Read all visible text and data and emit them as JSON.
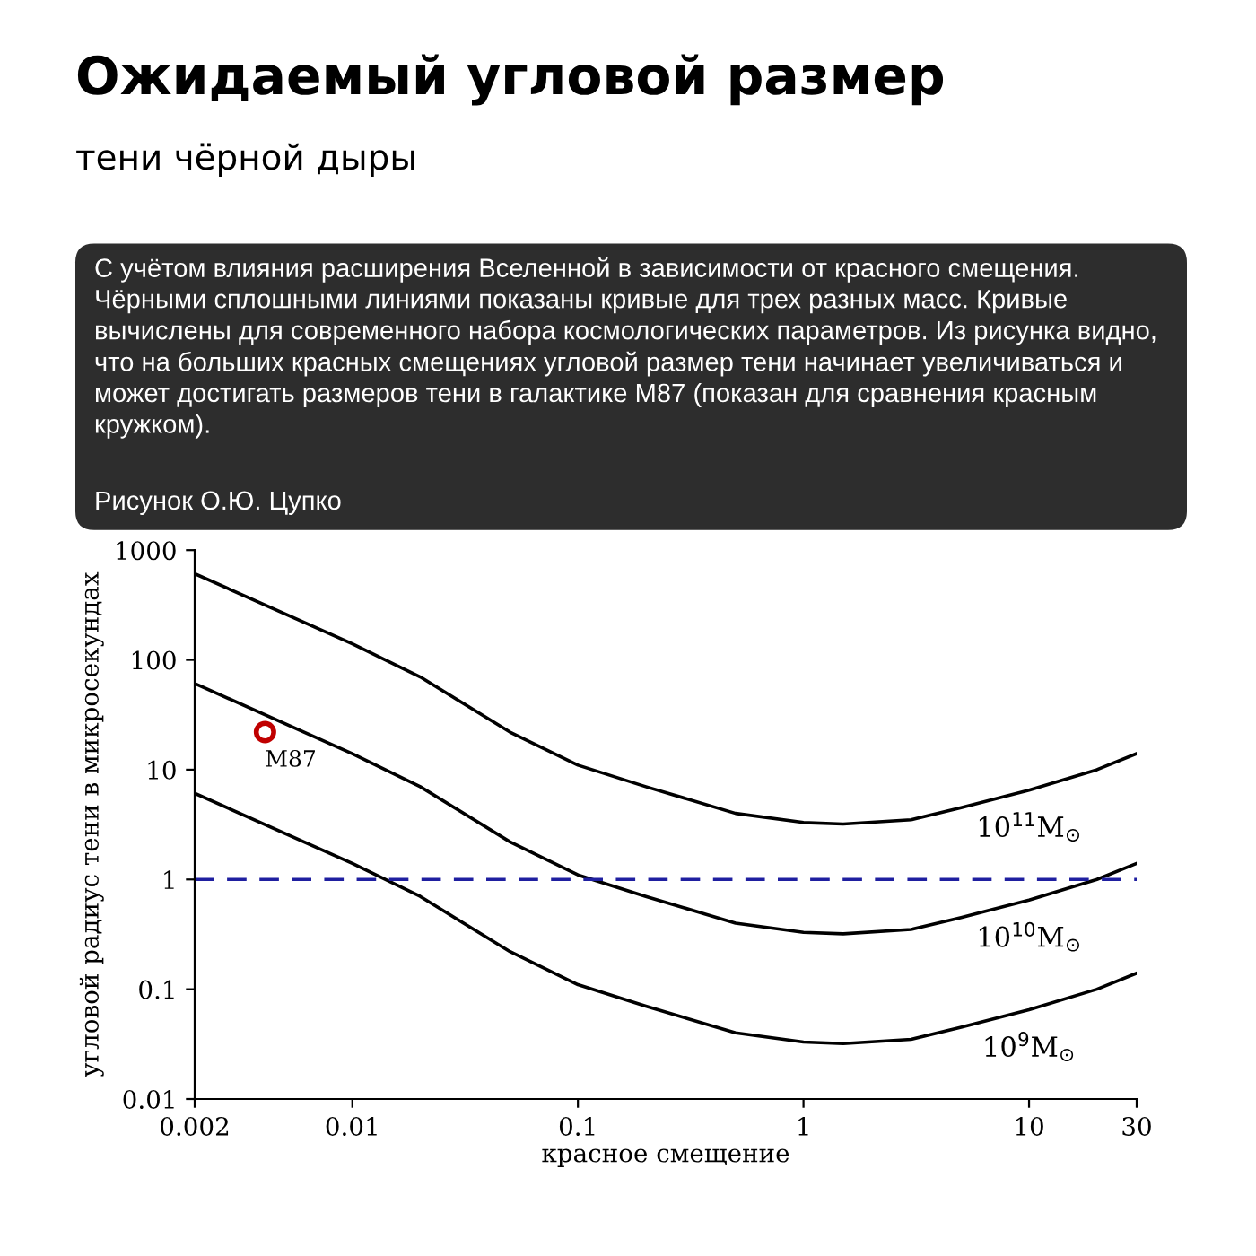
{
  "chart_data": {
    "type": "line",
    "title": "Ожидаемый угловой размер",
    "subtitle": "тени чёрной дыры",
    "annotations": [
      "С учётом влияния расширения Вселенной в зависимости от красного смещения. Чёрными сплошными линиями показаны кривые для трех разных масс. Кривые вычислены для современного набора космологических параметров. Из рисунка видно, что на больших красных смещениях угловой размер тени начинает увеличиваться и может достигать размеров тени в галактике M87 (показан для сравнения красным кружком).",
      "Рисунок О.Ю. Цупко",
      {
        "text": "M87",
        "x": 0.0041,
        "y": 22
      }
    ],
    "xlabel": "красное смещение",
    "ylabel": "угловой радиус тени в микросекундах",
    "log": "xy",
    "xlim": [
      0.002,
      30
    ],
    "ylim": [
      0.01,
      1000
    ],
    "xticks": [
      0.002,
      0.01,
      0.1,
      1,
      10,
      30
    ],
    "yticks": [
      0.01,
      0.1,
      1,
      10,
      100,
      1000
    ],
    "grid": false,
    "legend": false,
    "ref_lines": [
      {
        "axis": "y",
        "value": 1,
        "color": "#1f1fa0",
        "line_style": "dashed"
      }
    ],
    "series": [
      {
        "name": "10$^{11}$M$_{⊙}$",
        "color": "#000000",
        "x": [
          0.002,
          0.01,
          0.02,
          0.05,
          0.1,
          0.2,
          0.5,
          1,
          1.5,
          3,
          5,
          10,
          20,
          30
        ],
        "values": [
          610,
          140,
          70,
          22,
          11,
          7,
          4,
          3.3,
          3.2,
          3.5,
          4.5,
          6.5,
          10,
          14
        ]
      },
      {
        "name": "10$^{10}$M$_{⊙}$",
        "color": "#000000",
        "x": [
          0.002,
          0.01,
          0.02,
          0.05,
          0.1,
          0.2,
          0.5,
          1,
          1.5,
          3,
          5,
          10,
          20,
          30
        ],
        "values": [
          61,
          14,
          7,
          2.2,
          1.1,
          0.7,
          0.4,
          0.33,
          0.32,
          0.35,
          0.45,
          0.65,
          1,
          1.4
        ]
      },
      {
        "name": "10$^{9}$M$_{⊙}$",
        "color": "#000000",
        "x": [
          0.002,
          0.01,
          0.02,
          0.05,
          0.1,
          0.2,
          0.5,
          1,
          1.5,
          3,
          5,
          10,
          20,
          30
        ],
        "values": [
          6.1,
          1.4,
          0.7,
          0.22,
          0.11,
          0.07,
          0.04,
          0.033,
          0.032,
          0.035,
          0.045,
          0.065,
          0.1,
          0.14
        ]
      },
      {
        "type": "scatter",
        "color": "#c00000",
        "marker": "circle",
        "x": [
          0.0041
        ],
        "values": [
          22
        ]
      }
    ]
  }
}
